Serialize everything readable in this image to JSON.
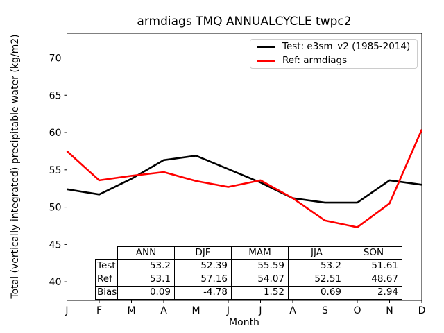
{
  "title": "armdiags TMQ ANNUALCYCLE twpc2",
  "axes": {
    "xlabel": "Month",
    "ylabel": "Total (vertically integrated) precipitable water (kg/m2)"
  },
  "legend": {
    "entries": [
      {
        "label": "Test: e3sm_v2 (1985-2014)",
        "color": "#000000"
      },
      {
        "label": "Ref: armdiags",
        "color": "#ff0000"
      }
    ]
  },
  "chart_data": {
    "type": "line",
    "title": "armdiags TMQ ANNUALCYCLE twpc2",
    "xlabel": "Month",
    "ylabel": "Total (vertically integrated) precipitable water (kg/m2)",
    "categories": [
      "Jan",
      "Feb",
      "Mar",
      "Apr",
      "May",
      "Jun",
      "Jul",
      "Aug",
      "Sep",
      "Oct",
      "Nov",
      "Dec"
    ],
    "x_tick_labels": [
      "J",
      "F",
      "M",
      "A",
      "M",
      "J",
      "J",
      "A",
      "S",
      "O",
      "N",
      "D"
    ],
    "y_ticks": [
      40,
      45,
      50,
      55,
      60,
      65,
      70
    ],
    "ylim": [
      37.5,
      73.3
    ],
    "grid": false,
    "legend_position": "upper right",
    "series": [
      {
        "name": "Test: e3sm_v2 (1985-2014)",
        "color": "#000000",
        "values": [
          52.4,
          51.7,
          53.8,
          56.3,
          56.9,
          55.1,
          53.3,
          51.2,
          50.6,
          50.6,
          53.6,
          53.0
        ]
      },
      {
        "name": "Ref: armdiags",
        "color": "#ff0000",
        "values": [
          57.5,
          53.6,
          54.2,
          54.7,
          53.5,
          52.7,
          53.6,
          51.2,
          48.2,
          47.3,
          50.5,
          60.4
        ]
      }
    ]
  },
  "stats_table": {
    "col_headers": [
      "ANN",
      "DJF",
      "MAM",
      "JJA",
      "SON"
    ],
    "rows": [
      {
        "label": "Test",
        "values": [
          "53.2",
          "52.39",
          "55.59",
          "53.2",
          "51.61"
        ]
      },
      {
        "label": "Ref",
        "values": [
          "53.1",
          "57.16",
          "54.07",
          "52.51",
          "48.67"
        ]
      },
      {
        "label": "Bias",
        "values": [
          "0.09",
          "-4.78",
          "1.52",
          "0.69",
          "2.94"
        ]
      }
    ]
  }
}
